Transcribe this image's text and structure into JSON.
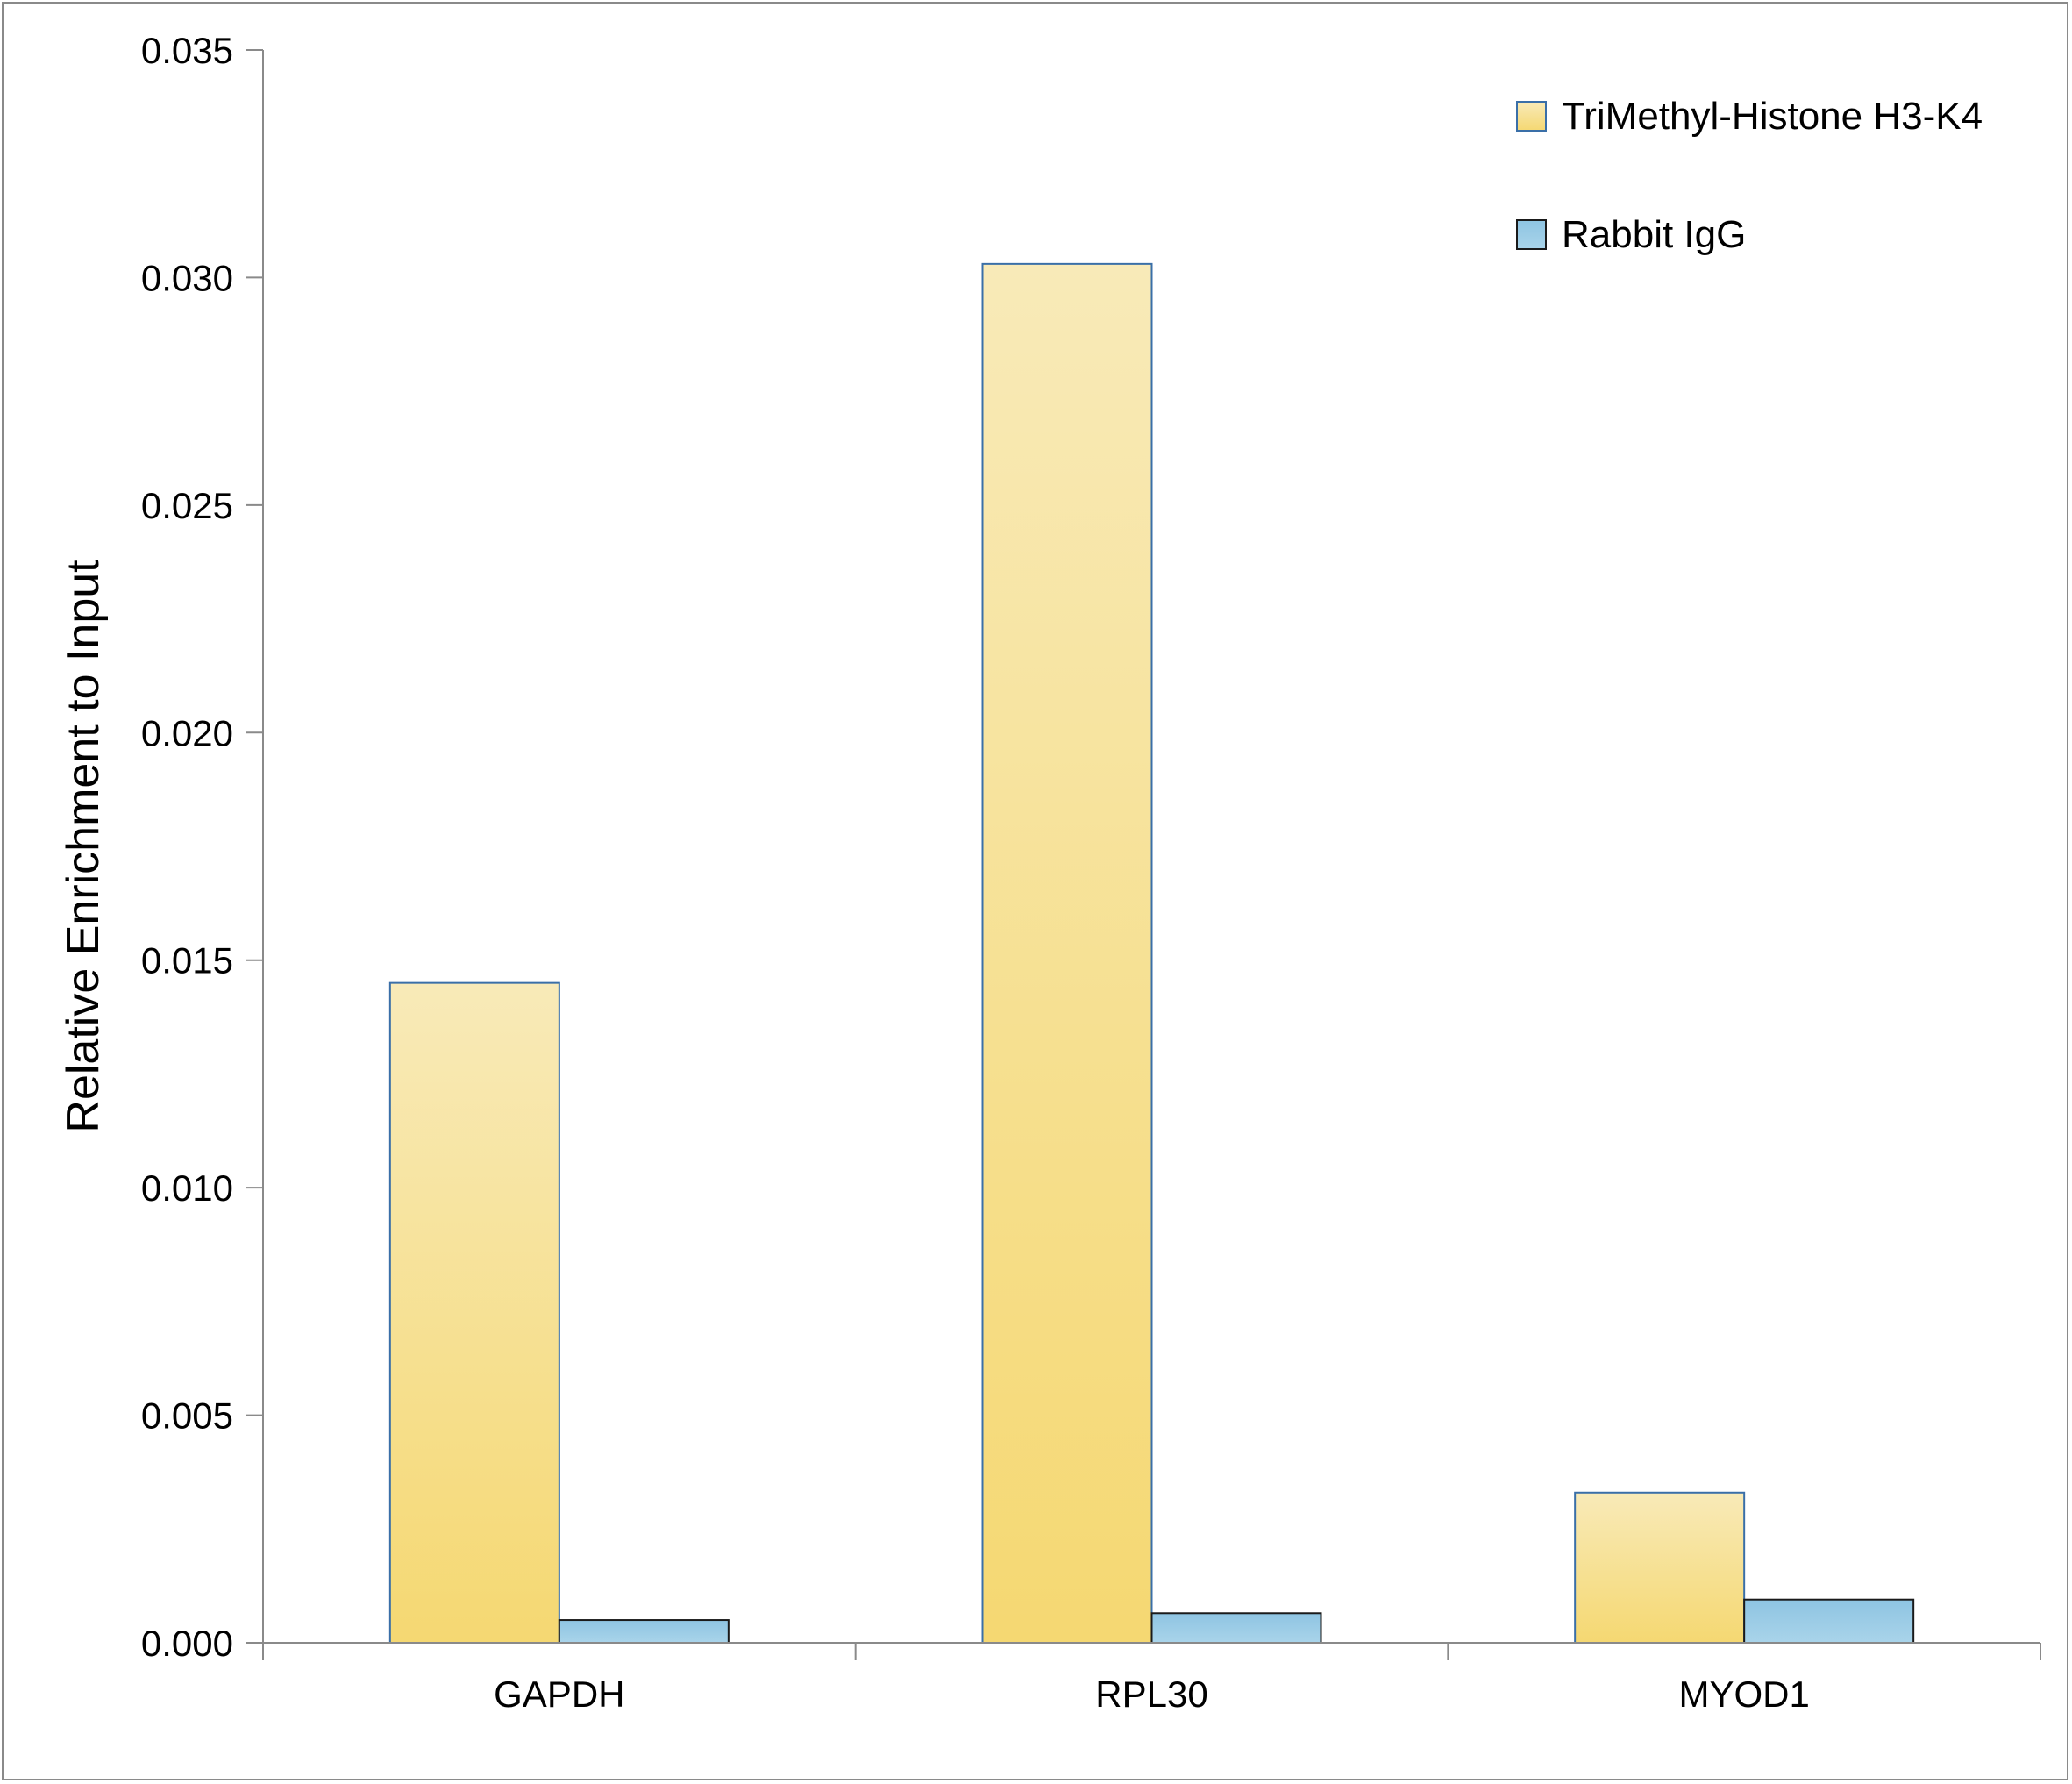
{
  "chart_data": {
    "type": "bar",
    "title": "",
    "xlabel": "",
    "ylabel": "Relative Enrichment to Input",
    "categories": [
      "GAPDH",
      "RPL30",
      "MYOD1"
    ],
    "series": [
      {
        "name": "TriMethyl-Histone H3-K4",
        "values": [
          0.0145,
          0.0303,
          0.0033
        ],
        "color": "#f5d872",
        "color_light": "#f8eab8",
        "stroke": "#3a6fa8"
      },
      {
        "name": "Rabbit IgG",
        "values": [
          0.0005,
          0.00065,
          0.00095
        ],
        "color": "#a9d4ea",
        "color_light": "#8ec4e2",
        "stroke": "#1a1a1a"
      }
    ],
    "ylim": [
      0,
      0.035
    ],
    "yticks": [
      "0.000",
      "0.005",
      "0.010",
      "0.015",
      "0.020",
      "0.025",
      "0.030",
      "0.035"
    ],
    "grid": false,
    "legend_position": "top-right"
  }
}
